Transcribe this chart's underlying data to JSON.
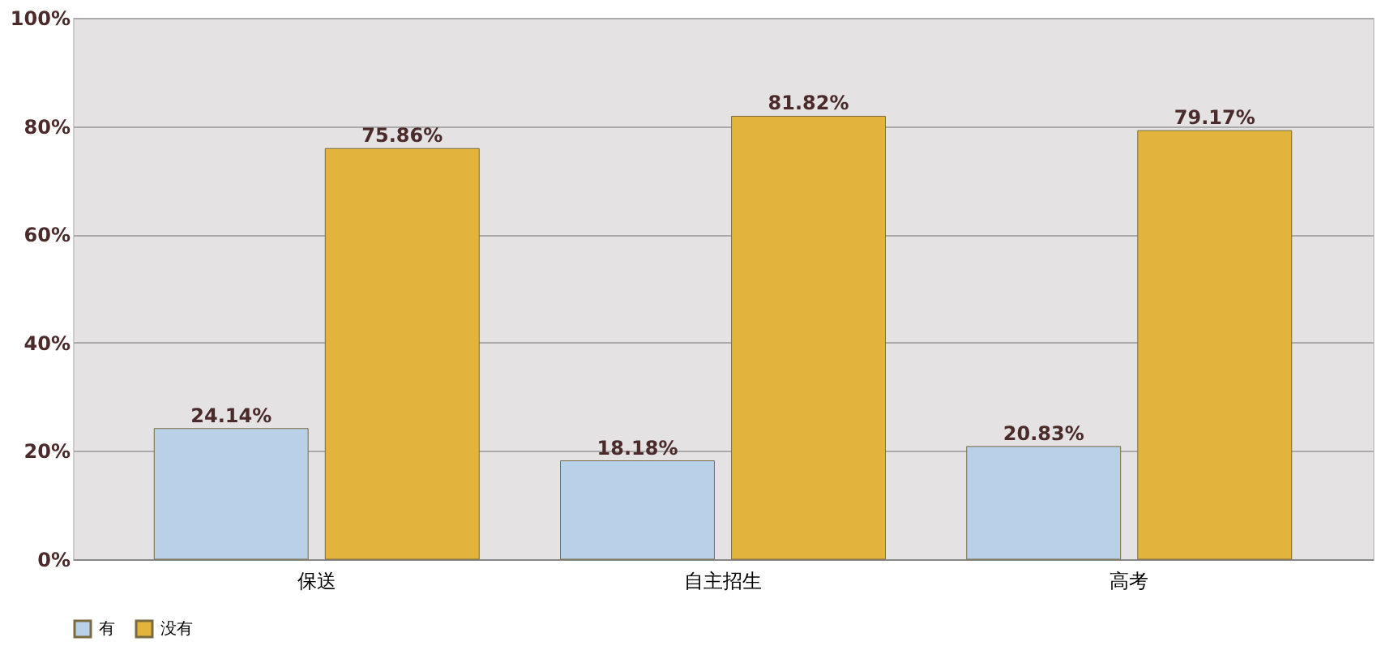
{
  "chart_data": {
    "type": "bar",
    "categories": [
      "保送",
      "自主招生",
      "高考"
    ],
    "series": [
      {
        "name": "有",
        "color": "#b8d0e8",
        "values": [
          24.14,
          18.18,
          20.83
        ],
        "value_labels": [
          "24.14%",
          "18.18%",
          "20.83%"
        ]
      },
      {
        "name": "没有",
        "color": "#e2b43c",
        "values": [
          75.86,
          81.82,
          79.17
        ],
        "value_labels": [
          "75.86%",
          "81.82%",
          "79.17%"
        ]
      }
    ],
    "ylim": [
      0,
      100
    ],
    "yticks": [
      {
        "value": 0,
        "label": "0%"
      },
      {
        "value": 20,
        "label": "20%"
      },
      {
        "value": 40,
        "label": "40%"
      },
      {
        "value": 60,
        "label": "60%"
      },
      {
        "value": 80,
        "label": "80%"
      },
      {
        "value": 100,
        "label": "100%"
      }
    ],
    "grid": "y",
    "legend": "bottom"
  }
}
